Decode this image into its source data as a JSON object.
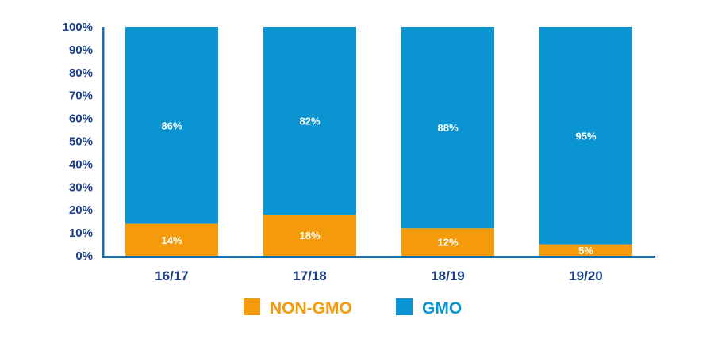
{
  "chart_data": {
    "type": "bar",
    "stacked": true,
    "categories": [
      "16/17",
      "17/18",
      "18/19",
      "19/20"
    ],
    "series": [
      {
        "name": "NON-GMO",
        "values": [
          14,
          18,
          12,
          5
        ],
        "labels": [
          "14%",
          "18%",
          "12%",
          "5%"
        ],
        "color": "#f59a0b"
      },
      {
        "name": "GMO",
        "values": [
          86,
          82,
          88,
          95
        ],
        "labels": [
          "86%",
          "82%",
          "88%",
          "95%"
        ],
        "color": "#0a94d1"
      }
    ],
    "yticks": [
      "0%",
      "10%",
      "20%",
      "30%",
      "40%",
      "50%",
      "60%",
      "70%",
      "80%",
      "90%",
      "100%"
    ],
    "ylim": [
      0,
      100
    ],
    "grid": false,
    "legend_position": "bottom",
    "axis_color": "#1b6ea8",
    "label_color": "#1b3e8a"
  }
}
